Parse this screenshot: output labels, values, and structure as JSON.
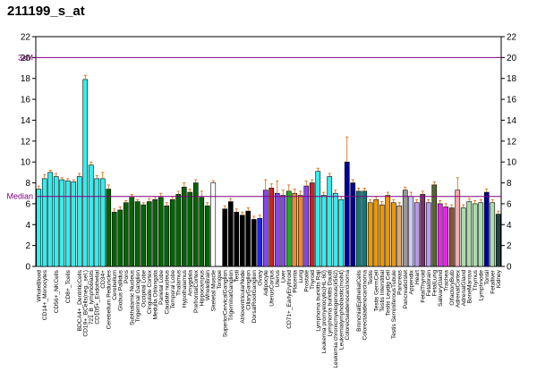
{
  "chart_data": {
    "type": "bar",
    "title": "211199_s_at",
    "xlabel": "",
    "ylabel": "",
    "ylim": [
      0,
      22
    ],
    "yticks": [
      0,
      2,
      4,
      6,
      8,
      10,
      12,
      14,
      16,
      18,
      20,
      22
    ],
    "reference_lines": [
      {
        "label": "3xM",
        "value": 20,
        "color": "#800080"
      },
      {
        "label": "Median",
        "value": 6.7,
        "color": "#800080"
      }
    ],
    "colors": {
      "cyan": "#33eeee",
      "dark_green": "#006600",
      "white": "#ffffff",
      "black": "#000000",
      "blue": "#2222ee",
      "violet": "#8844ee",
      "red": "#cc2222",
      "green": "#22aa22",
      "orange": "#ee8833",
      "cyan2": "#33eeee",
      "navy": "#000099",
      "teal": "#117777",
      "gold": "#ee9900",
      "tan": "#ddaa66",
      "grey": "#999999",
      "light_purple": "#bb99ee",
      "olive": "#556633",
      "purple": "#773366",
      "magenta": "#ee22ee",
      "pink": "#ffaaaa",
      "brown": "#885533",
      "pale_yellow": "#ffffcc",
      "pale_green": "#aaddaa",
      "lavender": "#ccccff",
      "dark_teal": "#224444",
      "error_bar": "#cc6600"
    },
    "bars": [
      {
        "label": "WholeBlood",
        "value": 7.4,
        "err": 0.3,
        "color": "cyan"
      },
      {
        "label": "CD14+_Monocytes",
        "value": 8.4,
        "err": 0.4,
        "color": "cyan"
      },
      {
        "label": "",
        "value": 9.0,
        "err": 0.2,
        "color": "cyan"
      },
      {
        "label": "CD56+_NKCells",
        "value": 8.6,
        "err": 0.3,
        "color": "cyan"
      },
      {
        "label": "",
        "value": 8.3,
        "err": 0.2,
        "color": "cyan"
      },
      {
        "label": "CD8+_Tcells",
        "value": 8.2,
        "err": 0.2,
        "color": "cyan"
      },
      {
        "label": "",
        "value": 8.1,
        "err": 0.2,
        "color": "cyan"
      },
      {
        "label": "BDCA4+_DentriticCells",
        "value": 8.6,
        "err": 0.3,
        "color": "cyan"
      },
      {
        "label": "CD19+_BCells(neg._sel.)",
        "value": 17.9,
        "err": 0.4,
        "color": "cyan"
      },
      {
        "label": "721_B_lymphoblasts",
        "value": 9.7,
        "err": 0.3,
        "color": "cyan"
      },
      {
        "label": "CD105+_Endothelial",
        "value": 8.4,
        "err": 0.3,
        "color": "cyan"
      },
      {
        "label": "CD34+",
        "value": 8.4,
        "err": 0.6,
        "color": "cyan"
      },
      {
        "label": "Cerebellum Peduncles",
        "value": 7.4,
        "err": 0.4,
        "color": "dark_green"
      },
      {
        "label": "Cerebellum",
        "value": 5.2,
        "err": 0.3,
        "color": "dark_green"
      },
      {
        "label": "Globus Pallidus",
        "value": 5.4,
        "err": 0.3,
        "color": "dark_green"
      },
      {
        "label": "Pons",
        "value": 6.1,
        "err": 0.2,
        "color": "dark_green"
      },
      {
        "label": "Subthalamic Nucleus",
        "value": 6.6,
        "err": 0.3,
        "color": "dark_green"
      },
      {
        "label": "Trigeminal Ganglion",
        "value": 6.2,
        "err": 0.2,
        "color": "dark_green"
      },
      {
        "label": "Occipital Lobe",
        "value": 5.9,
        "err": 0.2,
        "color": "dark_green"
      },
      {
        "label": "Cingulate Cortex",
        "value": 6.2,
        "err": 0.3,
        "color": "dark_green"
      },
      {
        "label": "Medulla Oblongata",
        "value": 6.4,
        "err": 0.3,
        "color": "dark_green"
      },
      {
        "label": "Parietal Lobe",
        "value": 6.6,
        "err": 0.4,
        "color": "dark_green"
      },
      {
        "label": "Caudate nucleus",
        "value": 5.8,
        "err": 0.3,
        "color": "dark_green"
      },
      {
        "label": "Temporal Lobe",
        "value": 6.4,
        "err": 0.3,
        "color": "dark_green"
      },
      {
        "label": "Thalamus",
        "value": 6.9,
        "err": 0.3,
        "color": "dark_green"
      },
      {
        "label": "Hypothalamus",
        "value": 7.6,
        "err": 0.4,
        "color": "dark_green"
      },
      {
        "label": "Amygdala",
        "value": 7.1,
        "err": 0.3,
        "color": "dark_green"
      },
      {
        "label": "PrefrontalCortex",
        "value": 8.0,
        "err": 0.3,
        "color": "dark_green"
      },
      {
        "label": "Hippocampus",
        "value": 6.6,
        "err": 0.6,
        "color": "dark_green"
      },
      {
        "label": "WholeBrain",
        "value": 5.8,
        "err": 0.3,
        "color": "dark_green"
      },
      {
        "label": "Skeletal Muscle",
        "value": 8.0,
        "err": 0.2,
        "color": "white"
      },
      {
        "label": "Tongue",
        "value": 0.0,
        "err": 0,
        "color": "white"
      },
      {
        "label": "SuperiorCervicalGanglion",
        "value": 5.5,
        "err": 0.3,
        "color": "black"
      },
      {
        "label": "TrigeminalGanglion",
        "value": 6.2,
        "err": 0.3,
        "color": "black"
      },
      {
        "label": "Testi",
        "value": 5.2,
        "err": 0.3,
        "color": "black"
      },
      {
        "label": "AtrioventricularNode",
        "value": 4.9,
        "err": 0.3,
        "color": "black"
      },
      {
        "label": "CiliaryGanglion",
        "value": 5.3,
        "err": 0.3,
        "color": "black"
      },
      {
        "label": "DorsalRootGanglion",
        "value": 4.5,
        "err": 0.3,
        "color": "black"
      },
      {
        "label": "Ovary",
        "value": 4.6,
        "err": 0.3,
        "color": "blue"
      },
      {
        "label": "Adipocyte",
        "value": 7.3,
        "err": 1.0,
        "color": "violet"
      },
      {
        "label": "UterusCorpus",
        "value": 7.5,
        "err": 0.4,
        "color": "red"
      },
      {
        "label": "Uterus",
        "value": 7.0,
        "err": 1.2,
        "color": "violet"
      },
      {
        "label": "Liver",
        "value": 6.8,
        "err": 0.5,
        "color": "violet"
      },
      {
        "label": "CD71+_EarlyErythroid",
        "value": 7.2,
        "err": 0.6,
        "color": "green"
      },
      {
        "label": "Placenta",
        "value": 7.0,
        "err": 0.4,
        "color": "orange"
      },
      {
        "label": "Lung",
        "value": 6.8,
        "err": 0.4,
        "color": "orange"
      },
      {
        "label": "Prostate",
        "value": 7.7,
        "err": 0.5,
        "color": "violet"
      },
      {
        "label": "Thyroid",
        "value": 8.0,
        "err": 0.3,
        "color": "red"
      },
      {
        "label": "Lymphoma burkitts Raji",
        "value": 9.1,
        "err": 0.3,
        "color": "cyan2"
      },
      {
        "label": "Leukemia promyelocytic(HL-60)",
        "value": 6.8,
        "err": 0.3,
        "color": "cyan2"
      },
      {
        "label": "Lymphoma burkitts Daudi",
        "value": 8.6,
        "err": 0.3,
        "color": "cyan2"
      },
      {
        "label": "Leukemia chronicmyelogenous(k562)",
        "value": 7.0,
        "err": 0.3,
        "color": "cyan2"
      },
      {
        "label": "Leukemialymphoblastic(molt4)",
        "value": 6.4,
        "err": 0.3,
        "color": "cyan2"
      },
      {
        "label": "Colorectaladenocarcinoma",
        "value": 10.0,
        "err": 2.4,
        "color": "navy"
      },
      {
        "label": "",
        "value": 8.0,
        "err": 0.3,
        "color": "navy"
      },
      {
        "label": "BronchialEpithelialCells",
        "value": 7.2,
        "err": 0.3,
        "color": "teal"
      },
      {
        "label": "Colorectaladenocarcinoma",
        "value": 7.2,
        "err": 0.3,
        "color": "teal"
      },
      {
        "label": "Testis",
        "value": 6.1,
        "err": 0.3,
        "color": "gold"
      },
      {
        "label": "Testis GermCell",
        "value": 6.4,
        "err": 0.3,
        "color": "gold"
      },
      {
        "label": "Testis Interstitial",
        "value": 5.9,
        "err": 0.3,
        "color": "gold"
      },
      {
        "label": "Testis Leydig Cell",
        "value": 6.8,
        "err": 0.3,
        "color": "gold"
      },
      {
        "label": "Testis SeminiferousTubule",
        "value": 6.1,
        "err": 0.3,
        "color": "gold"
      },
      {
        "label": "Pancreas",
        "value": 5.8,
        "err": 0.3,
        "color": "tan"
      },
      {
        "label": "PancreaticIslet",
        "value": 7.3,
        "err": 0.3,
        "color": "grey"
      },
      {
        "label": "Appendix",
        "value": 6.7,
        "err": 0.4,
        "color": "lavender"
      },
      {
        "label": "Heart",
        "value": 6.1,
        "err": 0.3,
        "color": "light_purple"
      },
      {
        "label": "FetalThyroid",
        "value": 6.9,
        "err": 0.3,
        "color": "purple"
      },
      {
        "label": "Fetalbrain",
        "value": 6.1,
        "err": 0.3,
        "color": "light_purple"
      },
      {
        "label": "FetalLung",
        "value": 7.8,
        "err": 0.3,
        "color": "olive"
      },
      {
        "label": "SalivaryGland",
        "value": 6.0,
        "err": 0.3,
        "color": "magenta"
      },
      {
        "label": "Trachea",
        "value": 5.7,
        "err": 0.3,
        "color": "magenta"
      },
      {
        "label": "OlfactoryBulb",
        "value": 5.6,
        "err": 0.3,
        "color": "brown"
      },
      {
        "label": "AdrenalCortex",
        "value": 7.3,
        "err": 1.2,
        "color": "pink"
      },
      {
        "label": "AdrenalGland",
        "value": 5.6,
        "err": 0.3,
        "color": "pale_green"
      },
      {
        "label": "BoneMarrow",
        "value": 6.2,
        "err": 0.3,
        "color": "pale_green"
      },
      {
        "label": "Thymus",
        "value": 6.0,
        "err": 0.3,
        "color": "pale_green"
      },
      {
        "label": "Lymphnode",
        "value": 6.1,
        "err": 0.3,
        "color": "pale_green"
      },
      {
        "label": "Tonsil",
        "value": 7.1,
        "err": 0.3,
        "color": "navy"
      },
      {
        "label": "Fetalliver",
        "value": 6.1,
        "err": 0.3,
        "color": "pale_green"
      },
      {
        "label": "Kidney",
        "value": 5.0,
        "err": 0.3,
        "color": "dark_teal"
      }
    ]
  }
}
